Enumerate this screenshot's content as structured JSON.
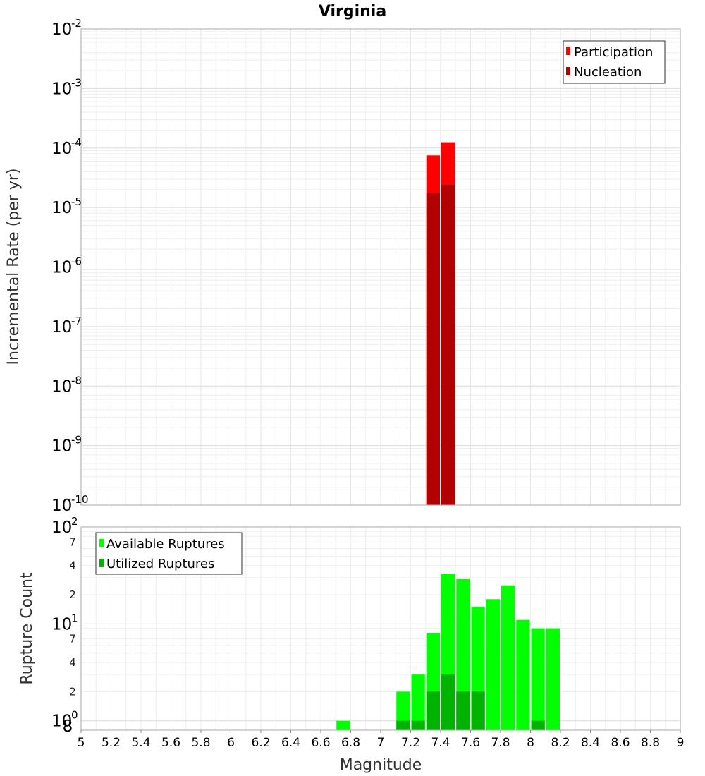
{
  "chart_data": [
    {
      "type": "bar",
      "title": "Virginia",
      "ylabel": "Incremental Rate (per yr)",
      "xlim": [
        5,
        9
      ],
      "ylim": [
        1e-10,
        0.01
      ],
      "yscale": "log",
      "y_tick_bases": [
        "10",
        "10",
        "10",
        "10",
        "10",
        "10",
        "10",
        "10",
        "10"
      ],
      "y_tick_exponents": [
        "-2",
        "-3",
        "-4",
        "-5",
        "-6",
        "-7",
        "-8",
        "-9",
        "-10"
      ],
      "grid": true,
      "legend_position": "top-right",
      "series": [
        {
          "name": "Participation",
          "color": "#ff0000",
          "x": [
            7.35,
            7.45
          ],
          "values": [
            7.5e-05,
            0.000125
          ]
        },
        {
          "name": "Nucleation",
          "color": "#b30000",
          "x": [
            7.35,
            7.45
          ],
          "values": [
            1.75e-05,
            2.4e-05
          ]
        }
      ]
    },
    {
      "type": "bar",
      "ylabel": "Rupture Count",
      "xlabel": "Magnitude",
      "xlim": [
        5,
        9
      ],
      "ylim": [
        0.8,
        100
      ],
      "yscale": "log",
      "y_major_tick_bases": [
        "10",
        "10",
        "10"
      ],
      "y_major_tick_exponents": [
        "2",
        "1",
        "0"
      ],
      "y_minor_tick_labels": [
        "7",
        "4",
        "2",
        "7",
        "4",
        "2",
        "8"
      ],
      "x_tick_labels": [
        "5",
        "5.2",
        "5.4",
        "5.6",
        "5.8",
        "6",
        "6.2",
        "6.4",
        "6.6",
        "6.8",
        "7",
        "7.2",
        "7.4",
        "7.6",
        "7.8",
        "8",
        "8.2",
        "8.4",
        "8.6",
        "8.8",
        "9"
      ],
      "grid": true,
      "legend_position": "top-left",
      "series": [
        {
          "name": "Available Ruptures",
          "color": "#00ff00",
          "x": [
            6.75,
            7.15,
            7.25,
            7.35,
            7.45,
            7.55,
            7.65,
            7.75,
            7.85,
            7.95,
            8.05,
            8.15
          ],
          "values": [
            1,
            2,
            3,
            8,
            33,
            29,
            15,
            18,
            25,
            11,
            9,
            9
          ]
        },
        {
          "name": "Utilized Ruptures",
          "color": "#00b300",
          "x": [
            7.15,
            7.25,
            7.35,
            7.45,
            7.55,
            7.65,
            8.05
          ],
          "values": [
            1,
            1,
            2,
            3,
            2,
            2,
            1
          ]
        }
      ]
    }
  ]
}
